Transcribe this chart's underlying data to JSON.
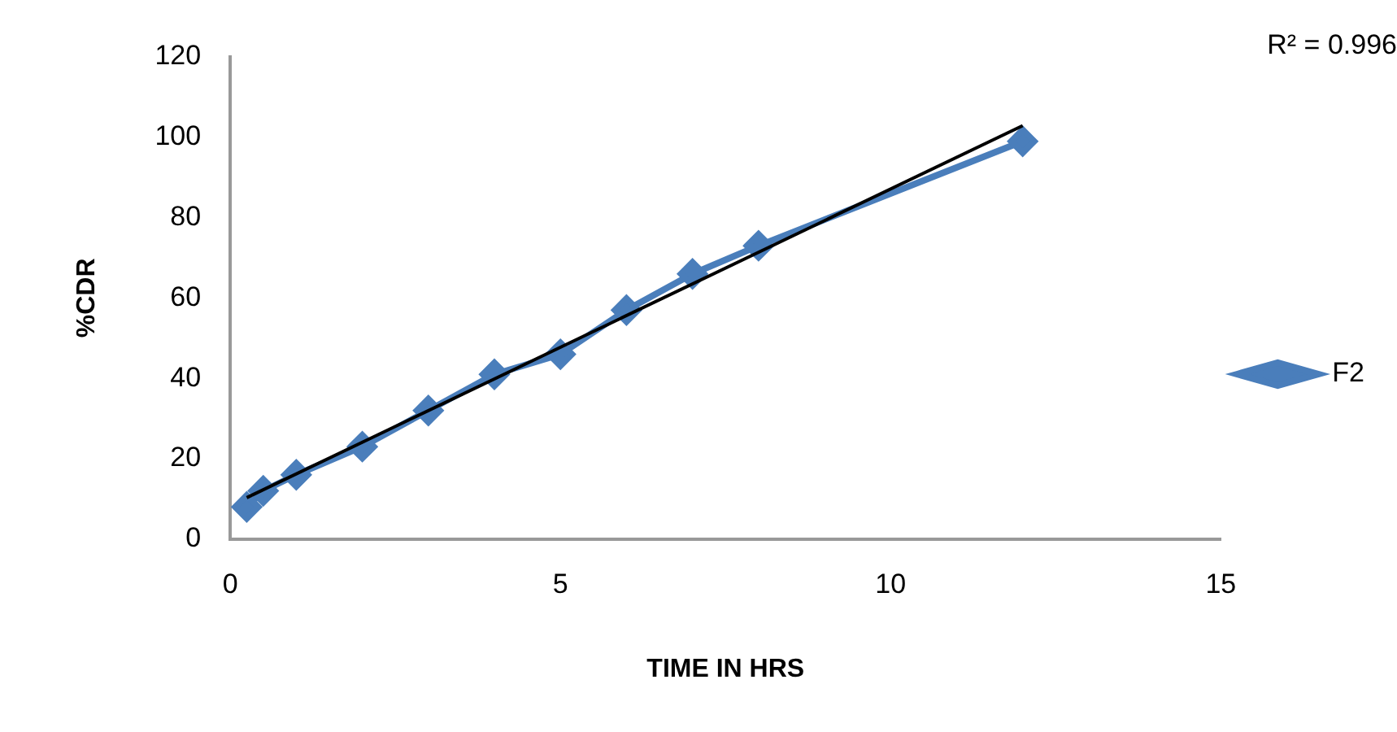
{
  "chart_data": {
    "type": "line",
    "xlabel": "TIME IN HRS",
    "ylabel": "%CDR",
    "x": [
      0.25,
      0.5,
      1,
      2,
      3,
      4,
      5,
      6,
      7,
      8,
      12
    ],
    "series": [
      {
        "name": "F2",
        "color": "#4a7ebb",
        "values": [
          8,
          12,
          16,
          23,
          32,
          41,
          46,
          57,
          66,
          73,
          99
        ],
        "marker": "diamond"
      },
      {
        "type": "line",
        "color": "#000000",
        "x": [
          0.25,
          12
        ],
        "values": [
          10.3,
          102.9
        ],
        "marker": "none"
      }
    ],
    "annotations": [
      "R² = 0.996"
    ],
    "xlim": [
      0,
      15
    ],
    "xticks": [
      0,
      5,
      10,
      15
    ],
    "ylim": [
      0,
      120
    ],
    "yticks": [
      0,
      20,
      40,
      60,
      80,
      100,
      120
    ],
    "grid": false,
    "legend": "right"
  }
}
